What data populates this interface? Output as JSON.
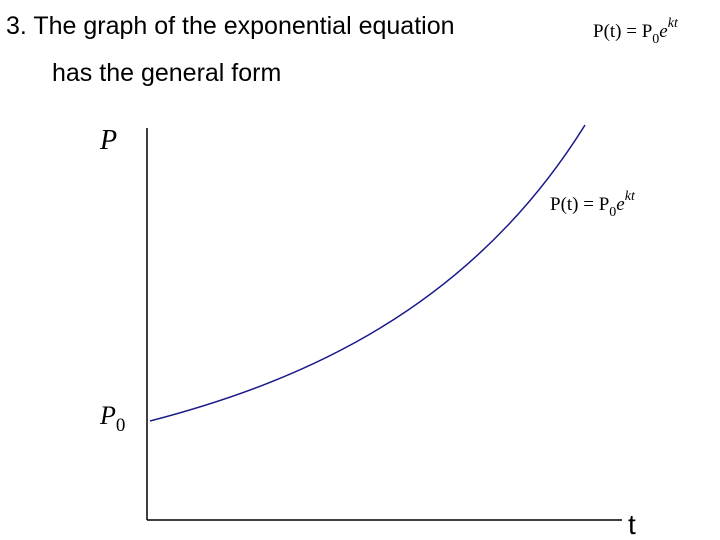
{
  "title": {
    "line1": "3. The graph of the exponential equation",
    "line2": "has the general form"
  },
  "equation": {
    "lhs": "P(t) = P",
    "sub": "0",
    "base": "e",
    "exp": "kt"
  },
  "diagram": {
    "y_axis_label": "P",
    "x_axis_label": "t",
    "intercept_label": {
      "main": "P",
      "sub": "0"
    },
    "curve_label": {
      "lhs": "P(t) = P",
      "sub": "0",
      "base": "e",
      "exp": "kt"
    }
  }
}
